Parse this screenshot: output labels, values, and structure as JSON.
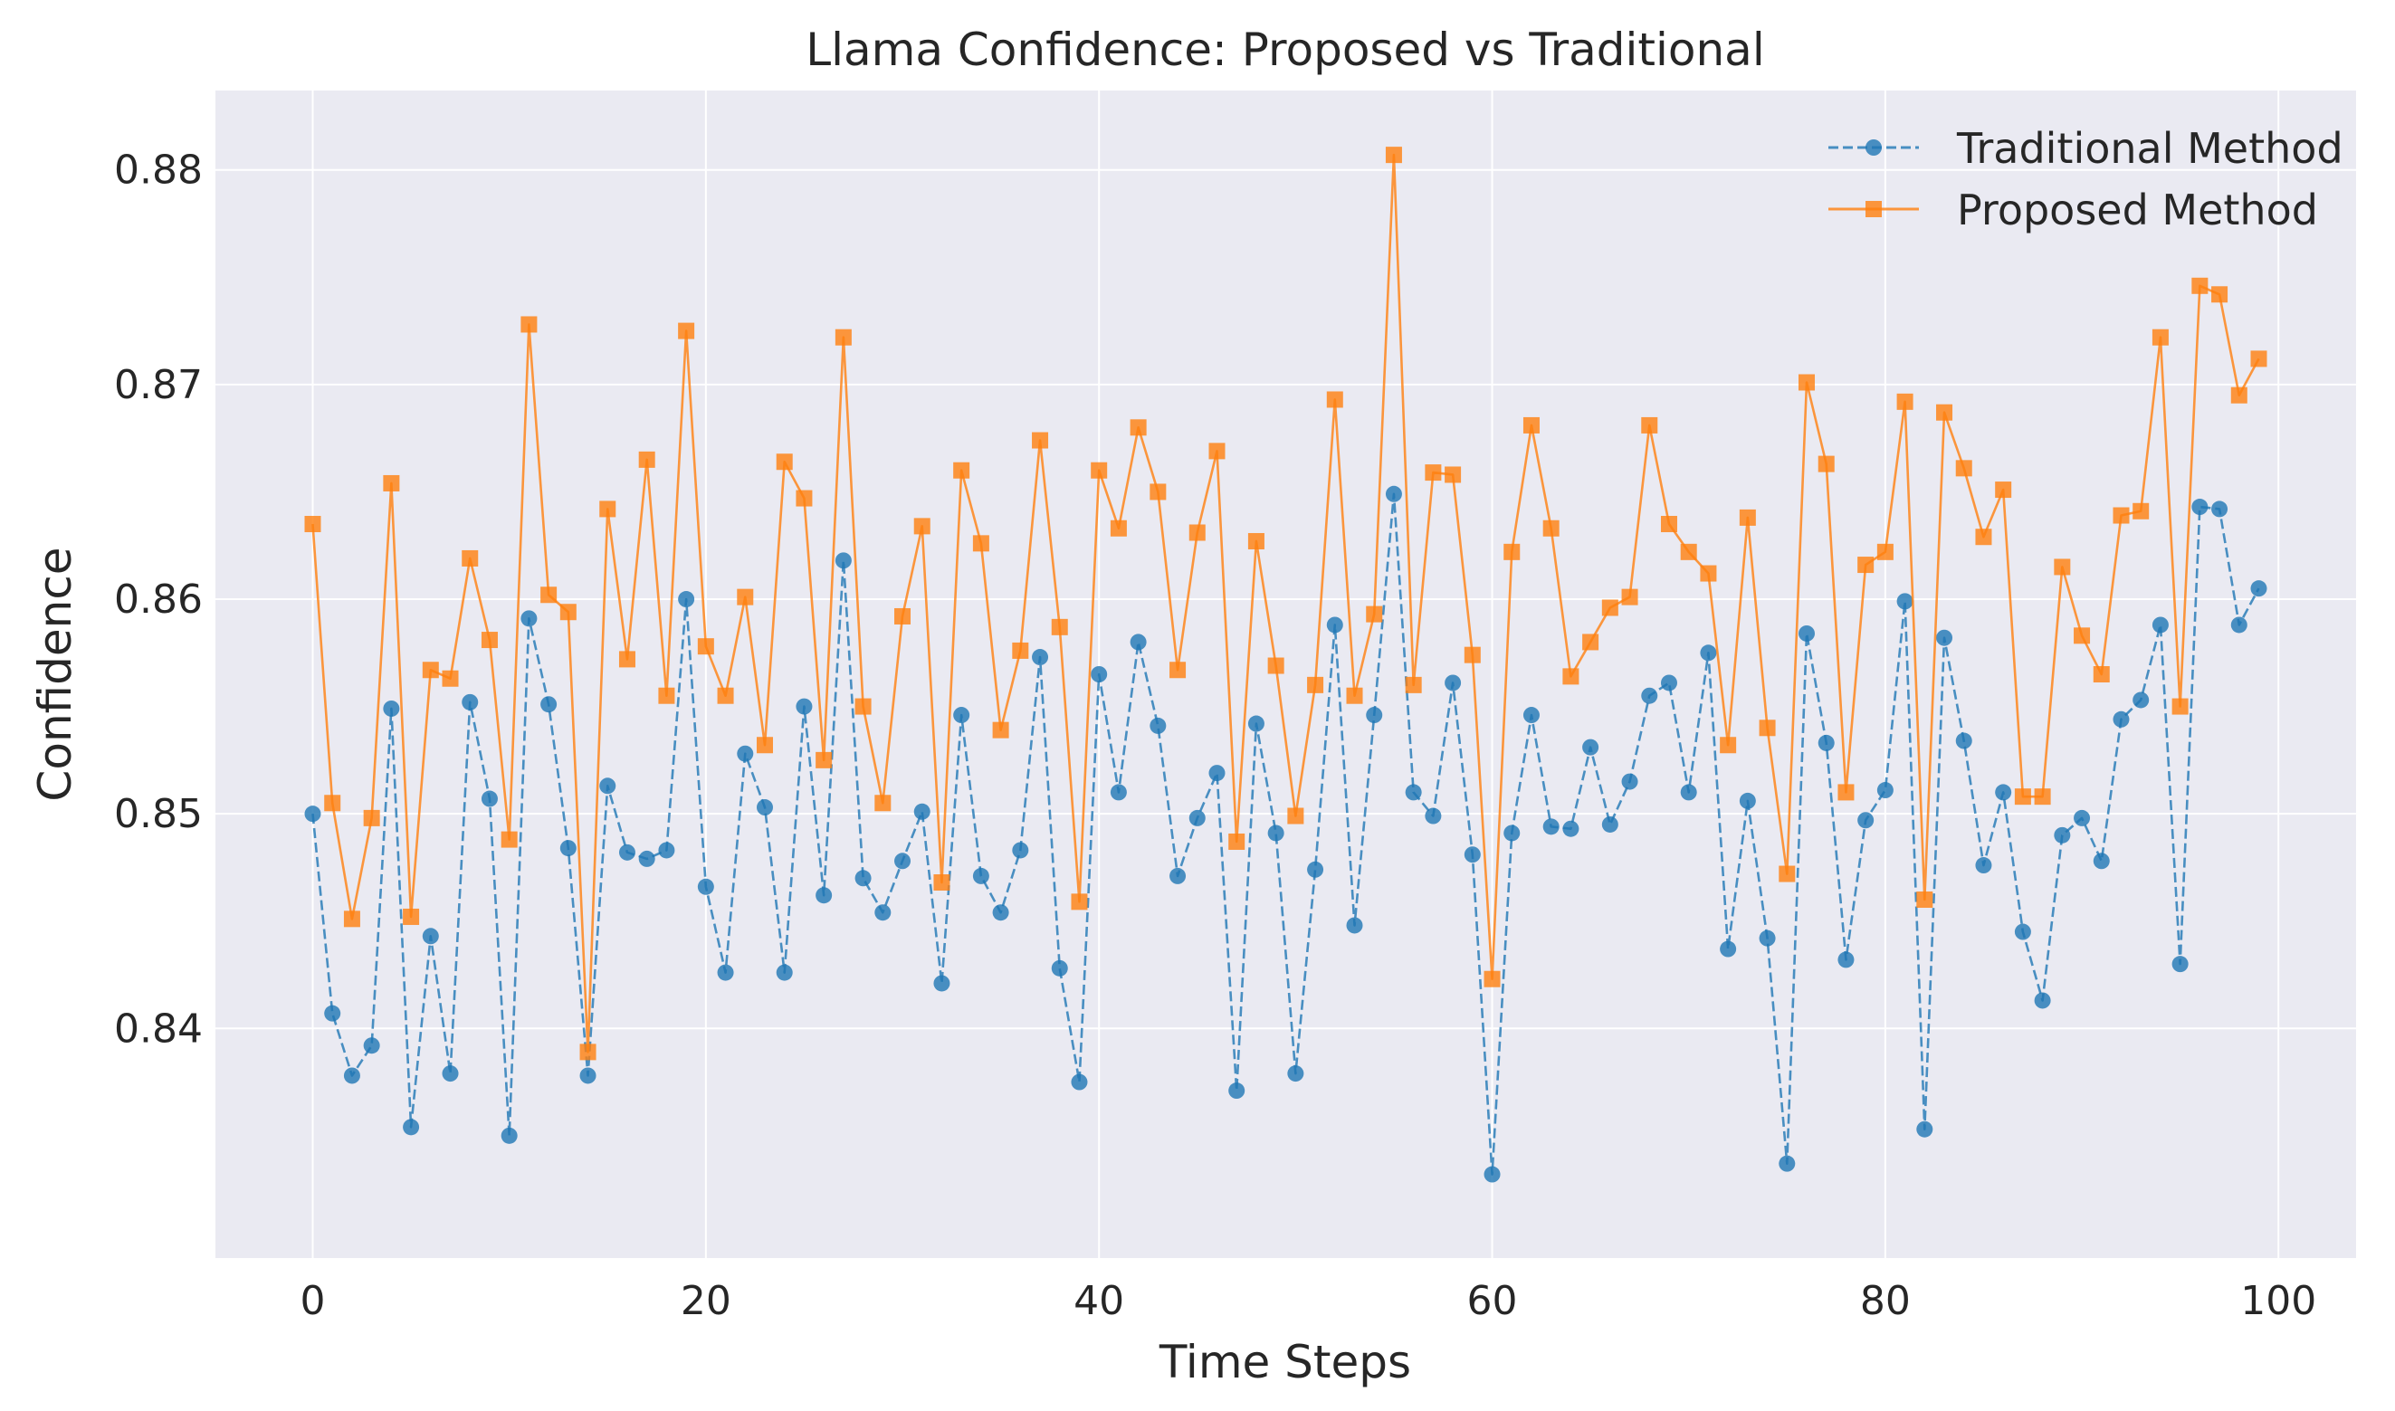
{
  "chart_data": {
    "type": "line",
    "title": "Llama Confidence: Proposed vs Traditional",
    "xlabel": "Time Steps",
    "ylabel": "Confidence",
    "xlim": [
      -4.95,
      103.95
    ],
    "ylim": [
      0.8293,
      0.8837
    ],
    "xticks": [
      0,
      20,
      40,
      60,
      80,
      100
    ],
    "xtick_labels": [
      "0",
      "20",
      "40",
      "60",
      "80",
      "100"
    ],
    "yticks": [
      0.84,
      0.85,
      0.86,
      0.87,
      0.88
    ],
    "ytick_labels": [
      "0.84",
      "0.85",
      "0.86",
      "0.87",
      "0.88"
    ],
    "grid": true,
    "legend_position": "top-right",
    "x": [
      0,
      1,
      2,
      3,
      4,
      5,
      6,
      7,
      8,
      9,
      10,
      11,
      12,
      13,
      14,
      15,
      16,
      17,
      18,
      19,
      20,
      21,
      22,
      23,
      24,
      25,
      26,
      27,
      28,
      29,
      30,
      31,
      32,
      33,
      34,
      35,
      36,
      37,
      38,
      39,
      40,
      41,
      42,
      43,
      44,
      45,
      46,
      47,
      48,
      49,
      50,
      51,
      52,
      53,
      54,
      55,
      56,
      57,
      58,
      59,
      60,
      61,
      62,
      63,
      64,
      65,
      66,
      67,
      68,
      69,
      70,
      71,
      72,
      73,
      74,
      75,
      76,
      77,
      78,
      79,
      80,
      81,
      82,
      83,
      84,
      85,
      86,
      87,
      88,
      89,
      90,
      91,
      92,
      93,
      94,
      95,
      96,
      97,
      98,
      99
    ],
    "series": [
      {
        "name": "Traditional Method",
        "color": "#1f77b4",
        "linestyle": "dashed",
        "marker": "circle",
        "values": [
          0.85,
          0.8407,
          0.8378,
          0.8392,
          0.8549,
          0.8354,
          0.8443,
          0.8379,
          0.8552,
          0.8507,
          0.835,
          0.8591,
          0.8551,
          0.8484,
          0.8378,
          0.8513,
          0.8482,
          0.8479,
          0.8483,
          0.86,
          0.8466,
          0.8426,
          0.8528,
          0.8503,
          0.8426,
          0.855,
          0.8462,
          0.8618,
          0.847,
          0.8454,
          0.8478,
          0.8501,
          0.8421,
          0.8546,
          0.8471,
          0.8454,
          0.8483,
          0.8573,
          0.8428,
          0.8375,
          0.8565,
          0.851,
          0.858,
          0.8541,
          0.8471,
          0.8498,
          0.8519,
          0.8371,
          0.8542,
          0.8491,
          0.8379,
          0.8474,
          0.8588,
          0.8448,
          0.8546,
          0.8649,
          0.851,
          0.8499,
          0.8561,
          0.8481,
          0.8332,
          0.8491,
          0.8546,
          0.8494,
          0.8493,
          0.8531,
          0.8495,
          0.8515,
          0.8555,
          0.8561,
          0.851,
          0.8575,
          0.8437,
          0.8506,
          0.8442,
          0.8337,
          0.8584,
          0.8533,
          0.8432,
          0.8497,
          0.8511,
          0.8599,
          0.8353,
          0.8582,
          0.8534,
          0.8476,
          0.851,
          0.8445,
          0.8413,
          0.849,
          0.8498,
          0.8478,
          0.8544,
          0.8553,
          0.8588,
          0.843,
          0.8643,
          0.8642,
          0.8588,
          0.8605
        ]
      },
      {
        "name": "Proposed Method",
        "color": "#ff7f0e",
        "linestyle": "solid",
        "marker": "square",
        "values": [
          0.8635,
          0.8505,
          0.8451,
          0.8498,
          0.8654,
          0.8452,
          0.8567,
          0.8563,
          0.8619,
          0.8581,
          0.8488,
          0.8728,
          0.8602,
          0.8594,
          0.8389,
          0.8642,
          0.8572,
          0.8665,
          0.8555,
          0.8725,
          0.8578,
          0.8555,
          0.8601,
          0.8532,
          0.8664,
          0.8647,
          0.8525,
          0.8722,
          0.855,
          0.8505,
          0.8592,
          0.8634,
          0.8468,
          0.866,
          0.8626,
          0.8539,
          0.8576,
          0.8674,
          0.8587,
          0.8459,
          0.866,
          0.8633,
          0.868,
          0.865,
          0.8567,
          0.8631,
          0.8669,
          0.8487,
          0.8627,
          0.8569,
          0.8499,
          0.856,
          0.8693,
          0.8555,
          0.8593,
          0.8807,
          0.856,
          0.8659,
          0.8658,
          0.8574,
          0.8423,
          0.8622,
          0.8681,
          0.8633,
          0.8564,
          0.858,
          0.8596,
          0.8601,
          0.8681,
          0.8635,
          0.8622,
          0.8612,
          0.8532,
          0.8638,
          0.854,
          0.8472,
          0.8701,
          0.8663,
          0.851,
          0.8616,
          0.8622,
          0.8692,
          0.846,
          0.8687,
          0.8661,
          0.8629,
          0.8651,
          0.8508,
          0.8508,
          0.8615,
          0.8583,
          0.8565,
          0.8639,
          0.8641,
          0.8722,
          0.855,
          0.8746,
          0.8742,
          0.8695,
          0.8712
        ]
      }
    ]
  }
}
